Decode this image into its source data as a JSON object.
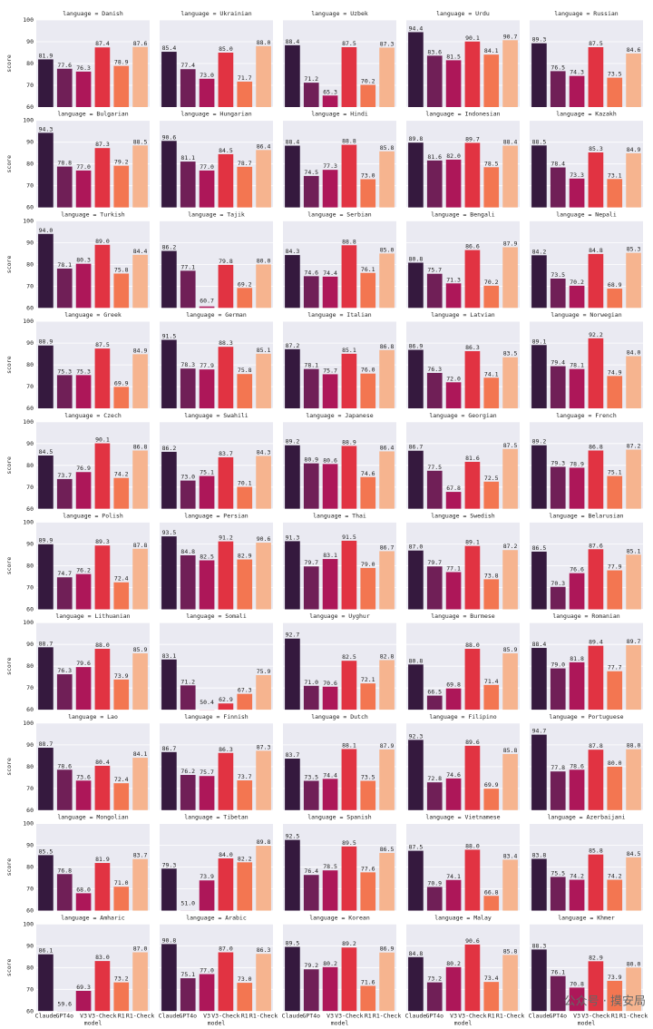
{
  "chart_data": {
    "type": "bar",
    "ylabel": "score",
    "xlabel": "model",
    "categories": [
      "Claude",
      "GPT4o",
      "V3",
      "V3-Check",
      "R1",
      "R1-Check"
    ],
    "colors": [
      "#35193e",
      "#701f57",
      "#ad1759",
      "#e13342",
      "#f37651",
      "#f6b48f"
    ],
    "ylim": [
      60,
      100
    ],
    "yticks": [
      60,
      70,
      80,
      90,
      100
    ],
    "grid": true,
    "facets": [
      {
        "title": "language = Danish",
        "values": [
          81.9,
          77.6,
          76.3,
          87.4,
          78.9,
          87.6
        ],
        "value_labels": [
          "81.9",
          "77.6",
          "76.3",
          "87.4",
          "78.9",
          "87.6"
        ]
      },
      {
        "title": "language = Ukrainian",
        "values": [
          85.4,
          77.4,
          73.0,
          85.0,
          71.7,
          88.0
        ],
        "value_labels": [
          "85.4",
          "77.4",
          "73.0",
          "85.0",
          "71.7",
          "88.0"
        ]
      },
      {
        "title": "language = Uzbek",
        "values": [
          88.4,
          71.2,
          65.3,
          87.5,
          70.2,
          87.3
        ],
        "value_labels": [
          "88.4",
          "71.2",
          "65.3",
          "87.5",
          "70.2",
          "87.3"
        ]
      },
      {
        "title": "language = Urdu",
        "values": [
          94.4,
          83.6,
          81.5,
          90.1,
          84.1,
          90.7
        ],
        "value_labels": [
          "94.4",
          "83.6",
          "81.5",
          "90.1",
          "84.1",
          "90.7"
        ]
      },
      {
        "title": "language = Russian",
        "values": [
          89.3,
          76.5,
          74.3,
          87.5,
          73.5,
          84.6
        ],
        "value_labels": [
          "89.3",
          "76.5",
          "74.3",
          "87.5",
          "73.5",
          "84.6"
        ]
      },
      {
        "title": "language = Bulgarian",
        "values": [
          94.3,
          78.8,
          77.0,
          87.3,
          79.2,
          88.5
        ],
        "value_labels": [
          "94.3",
          "78.8",
          "77.0",
          "87.3",
          "79.2",
          "88.5"
        ]
      },
      {
        "title": "language = Hungarian",
        "values": [
          90.6,
          81.1,
          77.0,
          84.5,
          78.7,
          86.4
        ],
        "value_labels": [
          "90.6",
          "81.1",
          "77.0",
          "84.5",
          "78.7",
          "86.4"
        ]
      },
      {
        "title": "language = Hindi",
        "values": [
          88.4,
          74.5,
          77.3,
          88.8,
          73.0,
          85.8
        ],
        "value_labels": [
          "88.4",
          "74.5",
          "77.3",
          "88.8",
          "73.0",
          "85.8"
        ]
      },
      {
        "title": "language = Indonesian",
        "values": [
          89.8,
          81.6,
          82.0,
          89.7,
          78.5,
          88.4
        ],
        "value_labels": [
          "89.8",
          "81.6",
          "82.0",
          "89.7",
          "78.5",
          "88.4"
        ]
      },
      {
        "title": "language = Kazakh",
        "values": [
          88.5,
          78.4,
          73.3,
          85.3,
          73.1,
          84.9
        ],
        "value_labels": [
          "88.5",
          "78.4",
          "73.3",
          "85.3",
          "73.1",
          "84.9"
        ]
      },
      {
        "title": "language = Turkish",
        "values": [
          94.0,
          78.1,
          80.3,
          89.0,
          75.8,
          84.4
        ],
        "value_labels": [
          "94.0",
          "78.1",
          "80.3",
          "89.0",
          "75.8",
          "84.4"
        ]
      },
      {
        "title": "language = Tajik",
        "values": [
          86.2,
          77.1,
          60.7,
          79.8,
          69.2,
          80.0
        ],
        "value_labels": [
          "86.2",
          "77.1",
          "60.7",
          "79.8",
          "69.2",
          "80.0"
        ]
      },
      {
        "title": "language = Serbian",
        "values": [
          84.3,
          74.6,
          74.4,
          88.8,
          76.1,
          85.0
        ],
        "value_labels": [
          "84.3",
          "74.6",
          "74.4",
          "88.8",
          "76.1",
          "85.0"
        ]
      },
      {
        "title": "language = Bengali",
        "values": [
          80.8,
          75.7,
          71.3,
          86.6,
          70.2,
          87.9
        ],
        "value_labels": [
          "80.8",
          "75.7",
          "71.3",
          "86.6",
          "70.2",
          "87.9"
        ]
      },
      {
        "title": "language = Nepali",
        "values": [
          84.2,
          73.5,
          70.2,
          84.8,
          68.9,
          85.3
        ],
        "value_labels": [
          "84.2",
          "73.5",
          "70.2",
          "84.8",
          "68.9",
          "85.3"
        ]
      },
      {
        "title": "language = Greek",
        "values": [
          88.9,
          75.3,
          75.3,
          87.5,
          69.9,
          84.9
        ],
        "value_labels": [
          "88.9",
          "75.3",
          "75.3",
          "87.5",
          "69.9",
          "84.9"
        ]
      },
      {
        "title": "language = German",
        "values": [
          91.5,
          78.3,
          77.9,
          88.3,
          75.8,
          85.1
        ],
        "value_labels": [
          "91.5",
          "78.3",
          "77.9",
          "88.3",
          "75.8",
          "85.1"
        ]
      },
      {
        "title": "language = Italian",
        "values": [
          87.2,
          78.1,
          75.7,
          85.1,
          76.0,
          86.8
        ],
        "value_labels": [
          "87.2",
          "78.1",
          "75.7",
          "85.1",
          "76.0",
          "86.8"
        ]
      },
      {
        "title": "language = Latvian",
        "values": [
          86.9,
          76.3,
          72.0,
          86.3,
          74.1,
          83.5
        ],
        "value_labels": [
          "86.9",
          "76.3",
          "72.0",
          "86.3",
          "74.1",
          "83.5"
        ]
      },
      {
        "title": "language = Norwegian",
        "values": [
          89.1,
          79.4,
          78.1,
          92.2,
          74.9,
          84.0
        ],
        "value_labels": [
          "89.1",
          "79.4",
          "78.1",
          "92.2",
          "74.9",
          "84.0"
        ]
      },
      {
        "title": "language = Czech",
        "values": [
          84.5,
          73.7,
          76.9,
          90.1,
          74.2,
          86.8
        ],
        "value_labels": [
          "84.5",
          "73.7",
          "76.9",
          "90.1",
          "74.2",
          "86.8"
        ]
      },
      {
        "title": "language = Swahili",
        "values": [
          86.2,
          73.0,
          75.1,
          83.7,
          70.1,
          84.3
        ],
        "value_labels": [
          "86.2",
          "73.0",
          "75.1",
          "83.7",
          "70.1",
          "84.3"
        ]
      },
      {
        "title": "language = Japanese",
        "values": [
          89.2,
          80.9,
          80.6,
          88.9,
          74.6,
          86.4
        ],
        "value_labels": [
          "89.2",
          "80.9",
          "80.6",
          "88.9",
          "74.6",
          "86.4"
        ]
      },
      {
        "title": "language = Georgian",
        "values": [
          86.7,
          77.5,
          67.8,
          81.6,
          72.5,
          87.5
        ],
        "value_labels": [
          "86.7",
          "77.5",
          "67.8",
          "81.6",
          "72.5",
          "87.5"
        ]
      },
      {
        "title": "language = French",
        "values": [
          89.2,
          79.3,
          78.9,
          86.8,
          75.1,
          87.2
        ],
        "value_labels": [
          "89.2",
          "79.3",
          "78.9",
          "86.8",
          "75.1",
          "87.2"
        ]
      },
      {
        "title": "language = Polish",
        "values": [
          89.9,
          74.7,
          76.2,
          89.3,
          72.4,
          87.8
        ],
        "value_labels": [
          "89.9",
          "74.7",
          "76.2",
          "89.3",
          "72.4",
          "87.8"
        ]
      },
      {
        "title": "language = Persian",
        "values": [
          93.5,
          84.8,
          82.5,
          91.2,
          82.9,
          90.6
        ],
        "value_labels": [
          "93.5",
          "84.8",
          "82.5",
          "91.2",
          "82.9",
          "90.6"
        ]
      },
      {
        "title": "language = Thai",
        "values": [
          91.3,
          79.7,
          83.1,
          91.5,
          79.0,
          86.7
        ],
        "value_labels": [
          "91.3",
          "79.7",
          "83.1",
          "91.5",
          "79.0",
          "86.7"
        ]
      },
      {
        "title": "language = Swedish",
        "values": [
          87.0,
          79.7,
          77.1,
          89.1,
          73.8,
          87.2
        ],
        "value_labels": [
          "87.0",
          "79.7",
          "77.1",
          "89.1",
          "73.8",
          "87.2"
        ]
      },
      {
        "title": "language = Belarusian",
        "values": [
          86.5,
          70.3,
          76.6,
          87.6,
          77.9,
          85.1
        ],
        "value_labels": [
          "86.5",
          "70.3",
          "76.6",
          "87.6",
          "77.9",
          "85.1"
        ]
      },
      {
        "title": "language = Lithuanian",
        "values": [
          88.7,
          76.3,
          79.6,
          88.0,
          73.9,
          85.9
        ],
        "value_labels": [
          "88.7",
          "76.3",
          "79.6",
          "88.0",
          "73.9",
          "85.9"
        ]
      },
      {
        "title": "language = Somali",
        "values": [
          83.1,
          71.2,
          50.4,
          62.9,
          67.3,
          75.9
        ],
        "value_labels": [
          "83.1",
          "71.2",
          "50.4",
          "62.9",
          "67.3",
          "75.9"
        ]
      },
      {
        "title": "language = Uyghur",
        "values": [
          92.7,
          71.0,
          70.6,
          82.5,
          72.1,
          82.8
        ],
        "value_labels": [
          "92.7",
          "71.0",
          "70.6",
          "82.5",
          "72.1",
          "82.8"
        ]
      },
      {
        "title": "language = Burmese",
        "values": [
          80.8,
          66.5,
          69.8,
          88.0,
          71.4,
          85.9
        ],
        "value_labels": [
          "80.8",
          "66.5",
          "69.8",
          "88.0",
          "71.4",
          "85.9"
        ]
      },
      {
        "title": "language = Romanian",
        "values": [
          88.4,
          79.0,
          81.8,
          89.4,
          77.7,
          89.7
        ],
        "value_labels": [
          "88.4",
          "79.0",
          "81.8",
          "89.4",
          "77.7",
          "89.7"
        ]
      },
      {
        "title": "language = Lao",
        "values": [
          88.7,
          78.6,
          73.6,
          80.4,
          72.4,
          84.1
        ],
        "value_labels": [
          "88.7",
          "78.6",
          "73.6",
          "80.4",
          "72.4",
          "84.1"
        ]
      },
      {
        "title": "language = Finnish",
        "values": [
          86.7,
          76.2,
          75.7,
          86.3,
          73.7,
          87.3
        ],
        "value_labels": [
          "86.7",
          "76.2",
          "75.7",
          "86.3",
          "73.7",
          "87.3"
        ]
      },
      {
        "title": "language = Dutch",
        "values": [
          83.7,
          73.5,
          74.4,
          88.1,
          73.5,
          87.9
        ],
        "value_labels": [
          "83.7",
          "73.5",
          "74.4",
          "88.1",
          "73.5",
          "87.9"
        ]
      },
      {
        "title": "language = Filipino",
        "values": [
          92.3,
          72.8,
          74.6,
          89.6,
          69.9,
          85.8
        ],
        "value_labels": [
          "92.3",
          "72.8",
          "74.6",
          "89.6",
          "69.9",
          "85.8"
        ]
      },
      {
        "title": "language = Portuguese",
        "values": [
          94.7,
          77.8,
          78.6,
          87.8,
          80.0,
          88.0
        ],
        "value_labels": [
          "94.7",
          "77.8",
          "78.6",
          "87.8",
          "80.0",
          "88.0"
        ]
      },
      {
        "title": "language = Mongolian",
        "values": [
          85.5,
          76.8,
          68.0,
          81.9,
          71.0,
          83.7
        ],
        "value_labels": [
          "85.5",
          "76.8",
          "68.0",
          "81.9",
          "71.0",
          "83.7"
        ]
      },
      {
        "title": "language = Tibetan",
        "values": [
          79.3,
          51.0,
          73.9,
          84.0,
          82.2,
          89.8
        ],
        "value_labels": [
          "79.3",
          "51.0",
          "73.9",
          "84.0",
          "82.2",
          "89.8"
        ]
      },
      {
        "title": "language = Spanish",
        "values": [
          92.5,
          76.4,
          78.5,
          89.5,
          77.6,
          86.5
        ],
        "value_labels": [
          "92.5",
          "76.4",
          "78.5",
          "89.5",
          "77.6",
          "86.5"
        ]
      },
      {
        "title": "language = Vietnamese",
        "values": [
          87.5,
          70.9,
          74.1,
          88.0,
          66.8,
          83.4
        ],
        "value_labels": [
          "87.5",
          "70.9",
          "74.1",
          "88.0",
          "66.8",
          "83.4"
        ]
      },
      {
        "title": "language = Azerbaijani",
        "values": [
          83.8,
          75.5,
          74.2,
          85.8,
          74.2,
          84.5
        ],
        "value_labels": [
          "83.8",
          "75.5",
          "74.2",
          "85.8",
          "74.2",
          "84.5"
        ]
      },
      {
        "title": "language = Amharic",
        "values": [
          86.1,
          59.6,
          69.3,
          83.0,
          73.2,
          87.0
        ],
        "value_labels": [
          "86.1",
          "59.6",
          "69.3",
          "83.0",
          "73.2",
          "87.0"
        ]
      },
      {
        "title": "language = Arabic",
        "values": [
          90.8,
          75.1,
          77.0,
          87.0,
          73.0,
          86.3
        ],
        "value_labels": [
          "90.8",
          "75.1",
          "77.0",
          "87.0",
          "73.0",
          "86.3"
        ]
      },
      {
        "title": "language = Korean",
        "values": [
          89.5,
          79.2,
          80.2,
          89.2,
          71.6,
          86.9
        ],
        "value_labels": [
          "89.5",
          "79.2",
          "80.2",
          "89.2",
          "71.6",
          "86.9"
        ]
      },
      {
        "title": "language = Malay",
        "values": [
          84.8,
          73.2,
          80.2,
          90.6,
          73.4,
          85.8
        ],
        "value_labels": [
          "84.8",
          "73.2",
          "80.2",
          "90.6",
          "73.4",
          "85.8"
        ]
      },
      {
        "title": "language = Khmer",
        "values": [
          88.3,
          76.1,
          70.8,
          82.9,
          73.9,
          80.0
        ],
        "value_labels": [
          "88.3",
          "76.1",
          "70.8",
          "82.9",
          "73.9",
          "80.0"
        ]
      }
    ]
  },
  "watermark": "公众号 · 摸安局"
}
